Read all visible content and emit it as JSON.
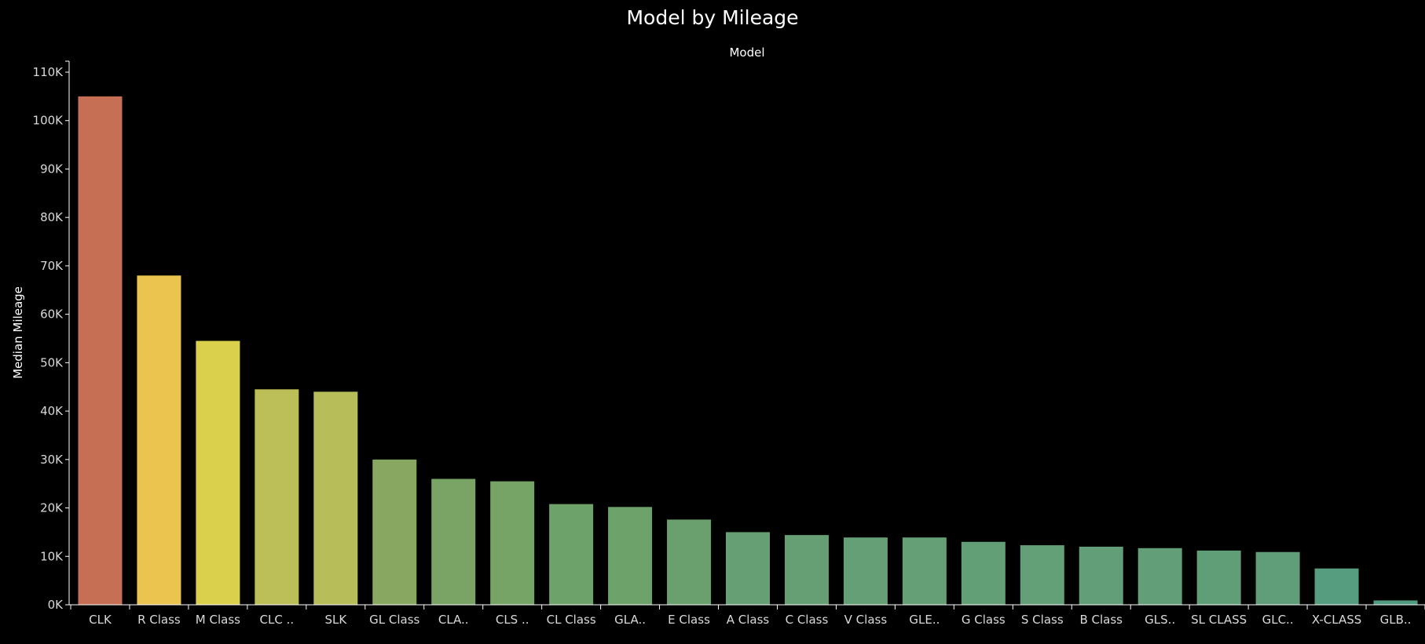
{
  "chart_data": {
    "type": "bar",
    "title": "Model by Mileage",
    "column_header": "Model",
    "xlabel": "",
    "ylabel": "Median Mileage",
    "ylim": [
      0,
      110000
    ],
    "y_ticks": [
      0,
      10000,
      20000,
      30000,
      40000,
      50000,
      60000,
      70000,
      80000,
      90000,
      100000,
      110000
    ],
    "y_tick_labels": [
      "0K",
      "10K",
      "20K",
      "30K",
      "40K",
      "50K",
      "60K",
      "70K",
      "80K",
      "90K",
      "100K",
      "110K"
    ],
    "grid": false,
    "legend": "none",
    "categories": [
      "CLK",
      "R Class",
      "M Class",
      "CLC ..",
      "SLK",
      "GL Class",
      "CLA..",
      "CLS ..",
      "CL Class",
      "GLA..",
      "E Class",
      "A Class",
      "C Class",
      "V Class",
      "GLE..",
      "G Class",
      "S Class",
      "B Class",
      "GLS..",
      "SL CLASS",
      "GLC..",
      "X-CLASS",
      "GLB.."
    ],
    "values": [
      105000,
      68000,
      54500,
      44500,
      44000,
      30000,
      26000,
      25500,
      20800,
      20200,
      17600,
      15000,
      14400,
      13900,
      13900,
      13000,
      12300,
      12000,
      11700,
      11200,
      10900,
      7500,
      900
    ],
    "colors": [
      "#c66f54",
      "#ebc450",
      "#dbd04b",
      "#bcbf58",
      "#b6bd59",
      "#88a862",
      "#79a466",
      "#76a466",
      "#6da26b",
      "#6da26b",
      "#6a9f6e",
      "#669f73",
      "#669f74",
      "#659f75",
      "#659f75",
      "#639f76",
      "#639f77",
      "#629e77",
      "#629e77",
      "#609e78",
      "#5f9e78",
      "#569c7e",
      "#509b82"
    ]
  }
}
